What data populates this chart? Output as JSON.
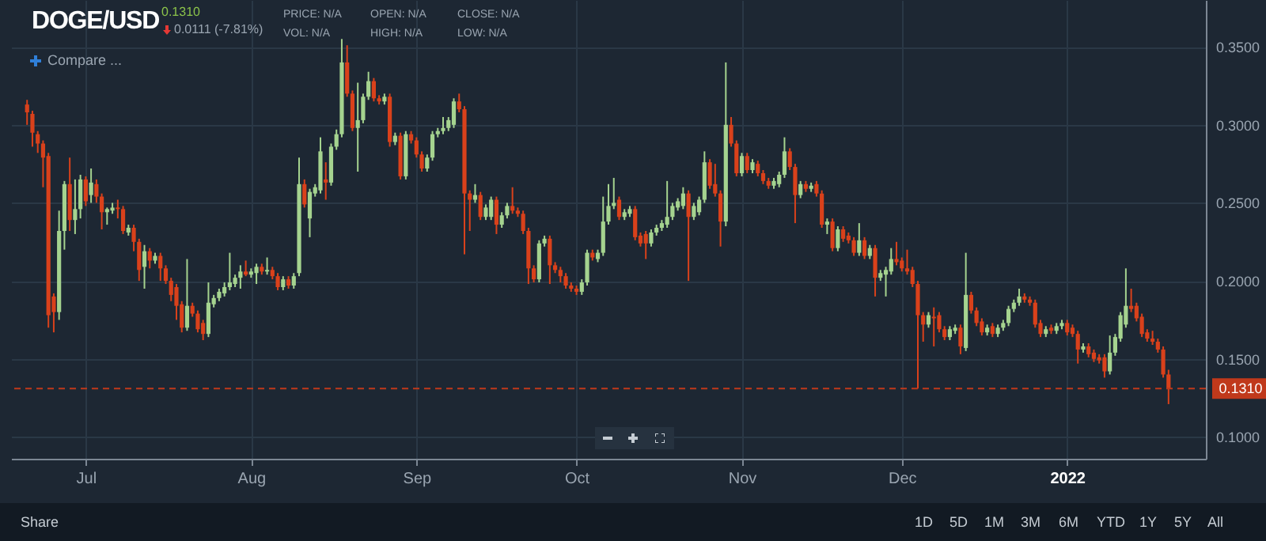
{
  "chart_data": {
    "type": "candlestick",
    "title": "DOGE/USD",
    "annotations": [
      "0.1310",
      "0.0111 (-7.81%)",
      "PRICE: N/A",
      "VOL: N/A",
      "OPEN: N/A",
      "HIGH: N/A",
      "CLOSE: N/A",
      "LOW: N/A",
      "Compare ...",
      "Share",
      "1D",
      "5D",
      "1M",
      "3M",
      "6M",
      "YTD",
      "1Y",
      "5Y",
      "All"
    ],
    "colors": [
      "#d9411b",
      "#d9411b",
      "#d9411b",
      "#d9411b",
      "#d9411b",
      "#d9411b",
      "#a5d38f",
      "#a5d38f",
      "#d9411b",
      "#a5d38f",
      "#a5d38f",
      "#d9411b",
      "#a5d38f",
      "#d9411b",
      "#d9411b",
      "#a5d38f",
      "#a5d38f",
      "#d9411b",
      "#d9411b",
      "#a5d38f",
      "#d9411b",
      "#d9411b",
      "#a5d38f",
      "#d9411b",
      "#a5d38f",
      "#d9411b",
      "#d9411b",
      "#d9411b",
      "#d9411b",
      "#d9411b",
      "#a5d38f",
      "#d9411b",
      "#d9411b",
      "#d9411b",
      "#a5d38f",
      "#a5d38f",
      "#a5d38f",
      "#a5d38f",
      "#a5d38f",
      "#a5d38f",
      "#a5d38f",
      "#d9411b",
      "#a5d38f",
      "#a5d38f",
      "#d9411b",
      "#a5d38f",
      "#d9411b",
      "#d9411b",
      "#a5d38f",
      "#d9411b",
      "#a5d38f",
      "#a5d38f",
      "#d9411b",
      "#a5d38f",
      "#a5d38f",
      "#a5d38f",
      "#d9411b",
      "#a5d38f",
      "#a5d38f",
      "#a5d38f",
      "#d9411b",
      "#d9411b",
      "#a5d38f",
      "#a5d38f",
      "#a5d38f",
      "#d9411b",
      "#d9411b",
      "#a5d38f",
      "#d9411b",
      "#a5d38f",
      "#d9411b",
      "#a5d38f",
      "#d9411b",
      "#d9411b",
      "#d9411b",
      "#a5d38f",
      "#a5d38f",
      "#a5d38f",
      "#a5d38f",
      "#a5d38f",
      "#a5d38f",
      "#d9411b",
      "#d9411b",
      "#d9411b",
      "#a5d38f",
      "#d9411b",
      "#a5d38f",
      "#a5d38f",
      "#d9411b",
      "#a5d38f",
      "#a5d38f",
      "#d9411b",
      "#d9411b",
      "#d9411b",
      "#d9411b",
      "#d9411b",
      "#a5d38f",
      "#a5d38f",
      "#d9411b",
      "#d9411b",
      "#d9411b",
      "#d9411b",
      "#d9411b",
      "#d9411b",
      "#a5d38f",
      "#a5d38f",
      "#d9411b",
      "#a5d38f",
      "#a5d38f",
      "#a5d38f",
      "#a5d38f",
      "#d9411b",
      "#a5d38f",
      "#a5d38f",
      "#d9411b",
      "#d9411b",
      "#d9411b",
      "#a5d38f",
      "#a5d38f",
      "#a5d38f",
      "#a5d38f",
      "#a5d38f",
      "#a5d38f",
      "#a5d38f",
      "#d9411b",
      "#a5d38f",
      "#a5d38f",
      "#a5d38f",
      "#d9411b",
      "#d9411b",
      "#d9411b",
      "#a5d38f",
      "#d9411b",
      "#d9411b",
      "#a5d38f",
      "#d9411b",
      "#a5d38f",
      "#d9411b",
      "#d9411b",
      "#d9411b",
      "#a5d38f",
      "#a5d38f",
      "#a5d38f",
      "#d9411b",
      "#d9411b",
      "#a5d38f",
      "#d9411b",
      "#a5d38f",
      "#d9411b",
      "#d9411b",
      "#a5d38f",
      "#d9411b",
      "#a5d38f",
      "#d9411b",
      "#d9411b",
      "#d9411b",
      "#a5d38f",
      "#d9411b",
      "#a5d38f",
      "#d9411b",
      "#a5d38f",
      "#a5d38f",
      "#a5d38f",
      "#d9411b",
      "#d9411b",
      "#d9411b",
      "#d9411b",
      "#d9411b",
      "#d9411b",
      "#a5d38f",
      "#d9411b",
      "#d9411b",
      "#d9411b",
      "#a5d38f",
      "#a5d38f",
      "#d9411b",
      "#a5d38f",
      "#d9411b",
      "#d9411b",
      "#d9411b",
      "#a5d38f",
      "#d9411b",
      "#a5d38f",
      "#a5d38f",
      "#a5d38f",
      "#a5d38f",
      "#a5d38f",
      "#d9411b",
      "#d9411b",
      "#d9411b",
      "#d9411b",
      "#a5d38f",
      "#d9411b",
      "#a5d38f",
      "#a5d38f",
      "#d9411b",
      "#d9411b",
      "#d9411b",
      "#a5d38f",
      "#d9411b",
      "#d9411b",
      "#d9411b",
      "#d9411b",
      "#a5d38f",
      "#a5d38f",
      "#a5d38f",
      "#a5d38f",
      "#d9411b",
      "#d9411b",
      "#d9411b",
      "#d9411b",
      "#d9411b",
      "#d9411b",
      "#d9411b",
      "#d9411b"
    ],
    "grid": true,
    "xlim": [
      "2021-06-17",
      "2022-01-27"
    ],
    "xticks": [
      {
        "value": "2021-07-01",
        "label": "Jul"
      },
      {
        "value": "2021-08-01",
        "label": "Aug"
      },
      {
        "value": "2021-09-01",
        "label": "Sep"
      },
      {
        "value": "2021-10-01",
        "label": "Oct"
      },
      {
        "value": "2021-11-01",
        "label": "Nov"
      },
      {
        "value": "2021-12-01",
        "label": "Dec"
      },
      {
        "value": "2022-01-01",
        "label": "2022"
      }
    ],
    "ylim": [
      0.086,
      0.38
    ],
    "yticks": [
      {
        "value": 0.1,
        "label": "0.1000"
      },
      {
        "value": 0.15,
        "label": "0.1500"
      },
      {
        "value": 0.2,
        "label": "0.2000"
      },
      {
        "value": 0.25,
        "label": "0.2500"
      },
      {
        "value": 0.3,
        "label": "0.3000"
      },
      {
        "value": 0.35,
        "label": "0.3500"
      }
    ],
    "ref_lines": [
      {
        "axis": "y",
        "value": 0.131,
        "label": "0.1310",
        "color": "#c0391b",
        "line_style": "dashed"
      }
    ],
    "x": [
      "2021-06-20",
      "2021-06-21",
      "2021-06-22",
      "2021-06-23",
      "2021-06-24",
      "2021-06-25",
      "2021-06-26",
      "2021-06-27",
      "2021-06-28",
      "2021-06-29",
      "2021-06-30",
      "2021-07-01",
      "2021-07-02",
      "2021-07-03",
      "2021-07-04",
      "2021-07-05",
      "2021-07-06",
      "2021-07-07",
      "2021-07-08",
      "2021-07-09",
      "2021-07-10",
      "2021-07-11",
      "2021-07-12",
      "2021-07-13",
      "2021-07-14",
      "2021-07-15",
      "2021-07-16",
      "2021-07-17",
      "2021-07-18",
      "2021-07-19",
      "2021-07-20",
      "2021-07-21",
      "2021-07-22",
      "2021-07-23",
      "2021-07-24",
      "2021-07-25",
      "2021-07-26",
      "2021-07-27",
      "2021-07-28",
      "2021-07-29",
      "2021-07-30",
      "2021-07-31",
      "2021-08-01",
      "2021-08-02",
      "2021-08-03",
      "2021-08-04",
      "2021-08-05",
      "2021-08-06",
      "2021-08-07",
      "2021-08-08",
      "2021-08-09",
      "2021-08-10",
      "2021-08-11",
      "2021-08-12",
      "2021-08-13",
      "2021-08-14",
      "2021-08-15",
      "2021-08-16",
      "2021-08-17",
      "2021-08-18",
      "2021-08-19",
      "2021-08-20",
      "2021-08-21",
      "2021-08-22",
      "2021-08-23",
      "2021-08-24",
      "2021-08-25",
      "2021-08-26",
      "2021-08-27",
      "2021-08-28",
      "2021-08-29",
      "2021-08-30",
      "2021-08-31",
      "2021-09-01",
      "2021-09-02",
      "2021-09-03",
      "2021-09-04",
      "2021-09-05",
      "2021-09-06",
      "2021-09-07",
      "2021-09-08",
      "2021-09-09",
      "2021-09-10",
      "2021-09-11",
      "2021-09-12",
      "2021-09-13",
      "2021-09-14",
      "2021-09-15",
      "2021-09-16",
      "2021-09-17",
      "2021-09-18",
      "2021-09-19",
      "2021-09-20",
      "2021-09-21",
      "2021-09-22",
      "2021-09-23",
      "2021-09-24",
      "2021-09-25",
      "2021-09-26",
      "2021-09-27",
      "2021-09-28",
      "2021-09-29",
      "2021-09-30",
      "2021-10-01",
      "2021-10-02",
      "2021-10-03",
      "2021-10-04",
      "2021-10-05",
      "2021-10-06",
      "2021-10-07",
      "2021-10-08",
      "2021-10-09",
      "2021-10-10",
      "2021-10-11",
      "2021-10-12",
      "2021-10-13",
      "2021-10-14",
      "2021-10-15",
      "2021-10-16",
      "2021-10-17",
      "2021-10-18",
      "2021-10-19",
      "2021-10-20",
      "2021-10-21",
      "2021-10-22",
      "2021-10-23",
      "2021-10-24",
      "2021-10-25",
      "2021-10-26",
      "2021-10-27",
      "2021-10-28",
      "2021-10-29",
      "2021-10-30",
      "2021-10-31",
      "2021-11-01",
      "2021-11-02",
      "2021-11-03",
      "2021-11-04",
      "2021-11-05",
      "2021-11-06",
      "2021-11-07",
      "2021-11-08",
      "2021-11-09",
      "2021-11-10",
      "2021-11-11",
      "2021-11-12",
      "2021-11-13",
      "2021-11-14",
      "2021-11-15",
      "2021-11-16",
      "2021-11-17",
      "2021-11-18",
      "2021-11-19",
      "2021-11-20",
      "2021-11-21",
      "2021-11-22",
      "2021-11-23",
      "2021-11-24",
      "2021-11-25",
      "2021-11-26",
      "2021-11-27",
      "2021-11-28",
      "2021-11-29",
      "2021-11-30",
      "2021-12-01",
      "2021-12-02",
      "2021-12-03",
      "2021-12-04",
      "2021-12-05",
      "2021-12-06",
      "2021-12-07",
      "2021-12-08",
      "2021-12-09",
      "2021-12-10",
      "2021-12-11",
      "2021-12-12",
      "2021-12-13",
      "2021-12-14",
      "2021-12-15",
      "2021-12-16",
      "2021-12-17",
      "2021-12-18",
      "2021-12-19",
      "2021-12-20",
      "2021-12-21",
      "2021-12-22",
      "2021-12-23",
      "2021-12-24",
      "2021-12-25",
      "2021-12-26",
      "2021-12-27",
      "2021-12-28",
      "2021-12-29",
      "2021-12-30",
      "2021-12-31",
      "2022-01-01",
      "2022-01-02",
      "2022-01-03",
      "2022-01-04",
      "2022-01-05",
      "2022-01-06",
      "2022-01-07",
      "2022-01-08",
      "2022-01-09",
      "2022-01-10",
      "2022-01-11",
      "2022-01-12",
      "2022-01-13",
      "2022-01-14",
      "2022-01-15",
      "2022-01-16",
      "2022-01-17",
      "2022-01-18",
      "2022-01-19",
      "2022-01-20"
    ],
    "ohlc": [
      [
        0.313,
        0.316,
        0.3,
        0.308
      ],
      [
        0.307,
        0.309,
        0.286,
        0.295
      ],
      [
        0.294,
        0.296,
        0.282,
        0.288
      ],
      [
        0.288,
        0.29,
        0.26,
        0.279
      ],
      [
        0.28,
        0.282,
        0.17,
        0.178
      ],
      [
        0.19,
        0.192,
        0.167,
        0.18
      ],
      [
        0.18,
        0.245,
        0.175,
        0.232
      ],
      [
        0.232,
        0.264,
        0.22,
        0.262
      ],
      [
        0.262,
        0.279,
        0.232,
        0.239
      ],
      [
        0.239,
        0.265,
        0.23,
        0.246
      ],
      [
        0.246,
        0.268,
        0.24,
        0.265
      ],
      [
        0.265,
        0.267,
        0.248,
        0.251
      ],
      [
        0.255,
        0.272,
        0.25,
        0.263
      ],
      [
        0.262,
        0.265,
        0.25,
        0.254
      ],
      [
        0.254,
        0.256,
        0.233,
        0.244
      ],
      [
        0.244,
        0.247,
        0.236,
        0.246
      ],
      [
        0.245,
        0.25,
        0.243,
        0.247
      ],
      [
        0.247,
        0.252,
        0.24,
        0.246
      ],
      [
        0.246,
        0.248,
        0.23,
        0.232
      ],
      [
        0.231,
        0.236,
        0.229,
        0.234
      ],
      [
        0.234,
        0.236,
        0.219,
        0.225
      ],
      [
        0.225,
        0.227,
        0.2,
        0.207
      ],
      [
        0.209,
        0.223,
        0.195,
        0.219
      ],
      [
        0.219,
        0.221,
        0.208,
        0.213
      ],
      [
        0.213,
        0.218,
        0.211,
        0.216
      ],
      [
        0.216,
        0.218,
        0.2,
        0.208
      ],
      [
        0.208,
        0.21,
        0.198,
        0.2
      ],
      [
        0.2,
        0.202,
        0.187,
        0.191
      ],
      [
        0.196,
        0.198,
        0.175,
        0.184
      ],
      [
        0.185,
        0.187,
        0.167,
        0.17
      ],
      [
        0.17,
        0.214,
        0.168,
        0.184
      ],
      [
        0.184,
        0.186,
        0.177,
        0.179
      ],
      [
        0.179,
        0.181,
        0.167,
        0.169
      ],
      [
        0.173,
        0.175,
        0.162,
        0.166
      ],
      [
        0.166,
        0.199,
        0.164,
        0.186
      ],
      [
        0.185,
        0.191,
        0.183,
        0.189
      ],
      [
        0.189,
        0.195,
        0.187,
        0.193
      ],
      [
        0.192,
        0.199,
        0.19,
        0.196
      ],
      [
        0.196,
        0.218,
        0.194,
        0.199
      ],
      [
        0.198,
        0.204,
        0.196,
        0.202
      ],
      [
        0.202,
        0.21,
        0.195,
        0.206
      ],
      [
        0.206,
        0.213,
        0.203,
        0.204
      ],
      [
        0.204,
        0.208,
        0.202,
        0.206
      ],
      [
        0.205,
        0.211,
        0.198,
        0.209
      ],
      [
        0.209,
        0.211,
        0.204,
        0.206
      ],
      [
        0.206,
        0.215,
        0.204,
        0.207
      ],
      [
        0.207,
        0.209,
        0.201,
        0.203
      ],
      [
        0.203,
        0.205,
        0.194,
        0.196
      ],
      [
        0.196,
        0.203,
        0.194,
        0.201
      ],
      [
        0.201,
        0.203,
        0.195,
        0.197
      ],
      [
        0.197,
        0.205,
        0.195,
        0.203
      ],
      [
        0.205,
        0.279,
        0.203,
        0.262
      ],
      [
        0.262,
        0.265,
        0.247,
        0.249
      ],
      [
        0.24,
        0.259,
        0.228,
        0.257
      ],
      [
        0.256,
        0.262,
        0.254,
        0.26
      ],
      [
        0.258,
        0.292,
        0.256,
        0.283
      ],
      [
        0.265,
        0.276,
        0.252,
        0.263
      ],
      [
        0.263,
        0.288,
        0.261,
        0.286
      ],
      [
        0.286,
        0.297,
        0.284,
        0.294
      ],
      [
        0.294,
        0.355,
        0.292,
        0.34
      ],
      [
        0.34,
        0.351,
        0.318,
        0.32
      ],
      [
        0.32,
        0.322,
        0.296,
        0.298
      ],
      [
        0.298,
        0.327,
        0.27,
        0.303
      ],
      [
        0.303,
        0.32,
        0.301,
        0.318
      ],
      [
        0.318,
        0.334,
        0.316,
        0.328
      ],
      [
        0.328,
        0.33,
        0.315,
        0.317
      ],
      [
        0.317,
        0.319,
        0.313,
        0.315
      ],
      [
        0.315,
        0.32,
        0.313,
        0.318
      ],
      [
        0.318,
        0.32,
        0.286,
        0.289
      ],
      [
        0.289,
        0.295,
        0.287,
        0.293
      ],
      [
        0.293,
        0.295,
        0.265,
        0.267
      ],
      [
        0.267,
        0.296,
        0.265,
        0.294
      ],
      [
        0.294,
        0.296,
        0.288,
        0.29
      ],
      [
        0.29,
        0.292,
        0.279,
        0.281
      ],
      [
        0.281,
        0.283,
        0.27,
        0.272
      ],
      [
        0.272,
        0.281,
        0.27,
        0.279
      ],
      [
        0.279,
        0.296,
        0.277,
        0.294
      ],
      [
        0.294,
        0.298,
        0.292,
        0.296
      ],
      [
        0.296,
        0.305,
        0.294,
        0.298
      ],
      [
        0.298,
        0.305,
        0.296,
        0.303
      ],
      [
        0.3,
        0.317,
        0.298,
        0.315
      ],
      [
        0.315,
        0.32,
        0.308,
        0.31
      ],
      [
        0.31,
        0.312,
        0.217,
        0.256
      ],
      [
        0.256,
        0.258,
        0.232,
        0.252
      ],
      [
        0.252,
        0.262,
        0.25,
        0.255
      ],
      [
        0.255,
        0.257,
        0.239,
        0.241
      ],
      [
        0.241,
        0.249,
        0.239,
        0.247
      ],
      [
        0.241,
        0.254,
        0.239,
        0.252
      ],
      [
        0.252,
        0.254,
        0.23,
        0.236
      ],
      [
        0.236,
        0.244,
        0.234,
        0.242
      ],
      [
        0.242,
        0.25,
        0.24,
        0.248
      ],
      [
        0.248,
        0.26,
        0.243,
        0.245
      ],
      [
        0.245,
        0.247,
        0.241,
        0.243
      ],
      [
        0.243,
        0.245,
        0.23,
        0.232
      ],
      [
        0.232,
        0.234,
        0.198,
        0.208
      ],
      [
        0.208,
        0.21,
        0.199,
        0.201
      ],
      [
        0.201,
        0.226,
        0.199,
        0.224
      ],
      [
        0.224,
        0.229,
        0.222,
        0.227
      ],
      [
        0.227,
        0.229,
        0.198,
        0.21
      ],
      [
        0.21,
        0.212,
        0.205,
        0.207
      ],
      [
        0.207,
        0.209,
        0.199,
        0.203
      ],
      [
        0.203,
        0.205,
        0.195,
        0.197
      ],
      [
        0.197,
        0.199,
        0.193,
        0.195
      ],
      [
        0.195,
        0.197,
        0.191,
        0.193
      ],
      [
        0.193,
        0.201,
        0.191,
        0.199
      ],
      [
        0.199,
        0.22,
        0.197,
        0.218
      ],
      [
        0.218,
        0.22,
        0.213,
        0.215
      ],
      [
        0.214,
        0.22,
        0.212,
        0.218
      ],
      [
        0.218,
        0.254,
        0.216,
        0.238
      ],
      [
        0.238,
        0.262,
        0.236,
        0.248
      ],
      [
        0.248,
        0.266,
        0.246,
        0.25
      ],
      [
        0.252,
        0.254,
        0.239,
        0.241
      ],
      [
        0.241,
        0.246,
        0.239,
        0.244
      ],
      [
        0.243,
        0.248,
        0.241,
        0.246
      ],
      [
        0.246,
        0.248,
        0.226,
        0.228
      ],
      [
        0.229,
        0.231,
        0.222,
        0.224
      ],
      [
        0.23,
        0.232,
        0.214,
        0.224
      ],
      [
        0.224,
        0.233,
        0.222,
        0.231
      ],
      [
        0.231,
        0.236,
        0.229,
        0.234
      ],
      [
        0.234,
        0.239,
        0.232,
        0.237
      ],
      [
        0.236,
        0.264,
        0.234,
        0.241
      ],
      [
        0.241,
        0.25,
        0.239,
        0.248
      ],
      [
        0.247,
        0.253,
        0.245,
        0.251
      ],
      [
        0.248,
        0.26,
        0.246,
        0.256
      ],
      [
        0.256,
        0.258,
        0.2,
        0.241
      ],
      [
        0.241,
        0.25,
        0.239,
        0.248
      ],
      [
        0.244,
        0.254,
        0.242,
        0.252
      ],
      [
        0.252,
        0.283,
        0.25,
        0.276
      ],
      [
        0.276,
        0.278,
        0.259,
        0.261
      ],
      [
        0.262,
        0.275,
        0.254,
        0.256
      ],
      [
        0.256,
        0.258,
        0.222,
        0.238
      ],
      [
        0.238,
        0.34,
        0.235,
        0.3
      ],
      [
        0.3,
        0.305,
        0.286,
        0.288
      ],
      [
        0.288,
        0.29,
        0.267,
        0.269
      ],
      [
        0.269,
        0.282,
        0.267,
        0.28
      ],
      [
        0.28,
        0.282,
        0.269,
        0.271
      ],
      [
        0.271,
        0.278,
        0.269,
        0.276
      ],
      [
        0.275,
        0.277,
        0.267,
        0.269
      ],
      [
        0.269,
        0.271,
        0.262,
        0.264
      ],
      [
        0.264,
        0.266,
        0.259,
        0.261
      ],
      [
        0.261,
        0.266,
        0.259,
        0.264
      ],
      [
        0.262,
        0.27,
        0.26,
        0.268
      ],
      [
        0.268,
        0.292,
        0.266,
        0.283
      ],
      [
        0.283,
        0.285,
        0.271,
        0.273
      ],
      [
        0.273,
        0.275,
        0.237,
        0.255
      ],
      [
        0.255,
        0.264,
        0.253,
        0.262
      ],
      [
        0.262,
        0.264,
        0.257,
        0.259
      ],
      [
        0.259,
        0.263,
        0.257,
        0.261
      ],
      [
        0.262,
        0.264,
        0.254,
        0.256
      ],
      [
        0.256,
        0.258,
        0.234,
        0.236
      ],
      [
        0.236,
        0.24,
        0.23,
        0.238
      ],
      [
        0.238,
        0.24,
        0.219,
        0.221
      ],
      [
        0.221,
        0.235,
        0.219,
        0.233
      ],
      [
        0.233,
        0.235,
        0.225,
        0.227
      ],
      [
        0.229,
        0.231,
        0.224,
        0.226
      ],
      [
        0.226,
        0.228,
        0.216,
        0.218
      ],
      [
        0.218,
        0.237,
        0.216,
        0.226
      ],
      [
        0.226,
        0.228,
        0.214,
        0.216
      ],
      [
        0.216,
        0.223,
        0.214,
        0.221
      ],
      [
        0.221,
        0.223,
        0.19,
        0.202
      ],
      [
        0.202,
        0.207,
        0.2,
        0.205
      ],
      [
        0.204,
        0.209,
        0.19,
        0.207
      ],
      [
        0.206,
        0.221,
        0.204,
        0.214
      ],
      [
        0.214,
        0.225,
        0.21,
        0.212
      ],
      [
        0.213,
        0.215,
        0.206,
        0.208
      ],
      [
        0.208,
        0.22,
        0.204,
        0.206
      ],
      [
        0.207,
        0.209,
        0.196,
        0.198
      ],
      [
        0.198,
        0.2,
        0.131,
        0.178
      ],
      [
        0.178,
        0.18,
        0.161,
        0.172
      ],
      [
        0.172,
        0.18,
        0.17,
        0.178
      ],
      [
        0.177,
        0.183,
        0.158,
        0.176
      ],
      [
        0.178,
        0.18,
        0.167,
        0.169
      ],
      [
        0.169,
        0.171,
        0.162,
        0.164
      ],
      [
        0.164,
        0.171,
        0.162,
        0.169
      ],
      [
        0.168,
        0.172,
        0.166,
        0.17
      ],
      [
        0.17,
        0.172,
        0.153,
        0.158
      ],
      [
        0.157,
        0.218,
        0.155,
        0.191
      ],
      [
        0.191,
        0.193,
        0.179,
        0.181
      ],
      [
        0.181,
        0.183,
        0.171,
        0.173
      ],
      [
        0.174,
        0.176,
        0.165,
        0.167
      ],
      [
        0.167,
        0.172,
        0.165,
        0.17
      ],
      [
        0.171,
        0.173,
        0.164,
        0.166
      ],
      [
        0.166,
        0.172,
        0.164,
        0.17
      ],
      [
        0.17,
        0.175,
        0.168,
        0.173
      ],
      [
        0.173,
        0.184,
        0.171,
        0.182
      ],
      [
        0.182,
        0.188,
        0.18,
        0.186
      ],
      [
        0.186,
        0.195,
        0.184,
        0.19
      ],
      [
        0.19,
        0.192,
        0.186,
        0.188
      ],
      [
        0.188,
        0.19,
        0.184,
        0.186
      ],
      [
        0.186,
        0.188,
        0.17,
        0.172
      ],
      [
        0.173,
        0.175,
        0.164,
        0.166
      ],
      [
        0.166,
        0.171,
        0.164,
        0.169
      ],
      [
        0.17,
        0.172,
        0.166,
        0.168
      ],
      [
        0.168,
        0.173,
        0.166,
        0.171
      ],
      [
        0.171,
        0.175,
        0.169,
        0.173
      ],
      [
        0.173,
        0.175,
        0.165,
        0.167
      ],
      [
        0.17,
        0.172,
        0.164,
        0.166
      ],
      [
        0.166,
        0.168,
        0.147,
        0.156
      ],
      [
        0.156,
        0.16,
        0.154,
        0.158
      ],
      [
        0.158,
        0.16,
        0.151,
        0.153
      ],
      [
        0.154,
        0.156,
        0.148,
        0.15
      ],
      [
        0.151,
        0.153,
        0.147,
        0.149
      ],
      [
        0.151,
        0.153,
        0.138,
        0.142
      ],
      [
        0.142,
        0.165,
        0.14,
        0.154
      ],
      [
        0.154,
        0.166,
        0.152,
        0.164
      ],
      [
        0.163,
        0.18,
        0.161,
        0.178
      ],
      [
        0.172,
        0.208,
        0.17,
        0.184
      ],
      [
        0.184,
        0.195,
        0.18,
        0.182
      ],
      [
        0.184,
        0.186,
        0.174,
        0.176
      ],
      [
        0.177,
        0.179,
        0.164,
        0.166
      ],
      [
        0.167,
        0.169,
        0.161,
        0.163
      ],
      [
        0.163,
        0.168,
        0.159,
        0.161
      ],
      [
        0.161,
        0.163,
        0.154,
        0.156
      ],
      [
        0.156,
        0.158,
        0.138,
        0.14
      ],
      [
        0.14,
        0.143,
        0.121,
        0.131
      ]
    ]
  }
}
